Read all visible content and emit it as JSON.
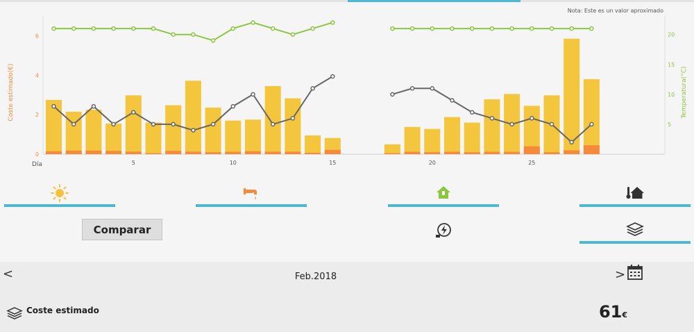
{
  "note": "Nota: Este es un valor aproximado",
  "chart_data": {
    "type": "bar",
    "x_label": "Día",
    "x": [
      1,
      2,
      3,
      4,
      5,
      6,
      7,
      8,
      9,
      10,
      11,
      12,
      13,
      14,
      15,
      16,
      17,
      18,
      19,
      20,
      21,
      22,
      23,
      24,
      25,
      26,
      27,
      28
    ],
    "x_ticks": [
      5,
      10,
      15,
      20,
      25
    ],
    "series": [
      {
        "name": "",
        "type": "bar",
        "axis": "left",
        "color": "#f4c63d",
        "values": [
          2.75,
          2.15,
          2.25,
          1.55,
          2.98,
          1.6,
          2.48,
          3.72,
          2.36,
          1.7,
          1.75,
          3.45,
          2.83,
          0.95,
          0.82,
          null,
          null,
          0.5,
          1.38,
          1.28,
          1.88,
          1.6,
          2.78,
          3.05,
          2.45,
          2.98,
          5.85,
          3.8
        ]
      },
      {
        "name": "",
        "type": "bar",
        "axis": "left",
        "color": "#f58a3c",
        "values": [
          0.15,
          0.18,
          0.18,
          0.17,
          0.13,
          0.05,
          0.17,
          0.13,
          0.1,
          0.12,
          0.15,
          0.13,
          0.13,
          0.07,
          0.22,
          null,
          null,
          0.05,
          0.12,
          0.1,
          0.12,
          0.1,
          0.12,
          0.12,
          0.4,
          0.1,
          0.2,
          0.45
        ]
      },
      {
        "name": "",
        "type": "line",
        "axis": "right",
        "color": "#666666",
        "values": [
          8,
          5,
          8,
          5,
          7,
          5,
          5,
          4,
          5,
          8,
          10,
          5,
          6,
          11,
          13,
          null,
          null,
          10,
          11,
          11,
          9,
          7,
          6,
          5,
          6,
          5,
          2,
          5
        ]
      },
      {
        "name": "",
        "type": "line",
        "axis": "right",
        "color": "#8cc63f",
        "values": [
          21,
          21,
          21,
          21,
          21,
          21,
          20,
          20,
          19,
          21,
          22,
          21,
          20,
          21,
          22,
          null,
          null,
          21,
          21,
          21,
          21,
          21,
          21,
          21,
          21,
          21,
          21,
          21
        ]
      }
    ],
    "left_axis": {
      "label": "Coste estimado(€)",
      "range": [
        0,
        7
      ],
      "ticks": [
        0,
        2,
        4,
        6
      ],
      "color": "#f58a3c"
    },
    "right_axis": {
      "label": "Temperatura(°C)",
      "range": [
        0,
        23.1
      ],
      "ticks": [
        5,
        10,
        15,
        20
      ],
      "color": "#8cc63f"
    },
    "grid": false
  },
  "tabs": {
    "solar_icon": "sun-icon",
    "water_icon": "faucet-icon",
    "home_icon": "house-icon",
    "thermo_icon": "thermometer-house-icon"
  },
  "compare_button": "Comparar",
  "energy_icon": "power-bolt-icon",
  "stack_icon": "stack-icon",
  "period": {
    "prev": "<",
    "label": "Feb.2018",
    "next": ">"
  },
  "footer": {
    "label": "Coste estimado",
    "total": "61",
    "unit": "€"
  },
  "colors": {
    "accent": "#4db8d3",
    "cost_bar": "#f4c63d",
    "cost_bar_base": "#f58a3c",
    "temp_out": "#666666",
    "temp_in": "#8cc63f"
  }
}
